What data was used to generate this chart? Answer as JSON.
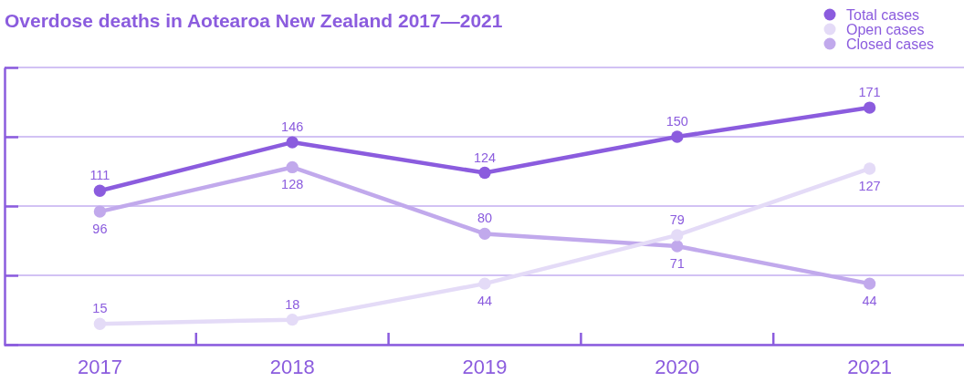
{
  "chart_data": {
    "type": "line",
    "title": "Overdose deaths in Aotearoa New Zealand 2017—2021",
    "categories": [
      "2017",
      "2018",
      "2019",
      "2020",
      "2021"
    ],
    "series": [
      {
        "name": "Total cases",
        "color": "#8b5cde",
        "values": [
          111,
          146,
          124,
          150,
          171
        ]
      },
      {
        "name": "Open cases",
        "color": "#e4dbf7",
        "values": [
          15,
          18,
          44,
          79,
          127
        ]
      },
      {
        "name": "Closed cases",
        "color": "#c1a9ec",
        "values": [
          96,
          128,
          80,
          71,
          44
        ]
      }
    ],
    "ylim": [
      0,
      200
    ],
    "yticks": [
      {
        "value": 0,
        "label": null
      },
      {
        "value": 50,
        "label": null
      },
      {
        "value": 100,
        "label": null
      },
      {
        "value": 150,
        "label": null
      },
      {
        "value": 200,
        "label": null
      }
    ],
    "tick_labels": "x",
    "grid": "y",
    "legend": "top right",
    "marker": "circle",
    "data_labels": true
  }
}
